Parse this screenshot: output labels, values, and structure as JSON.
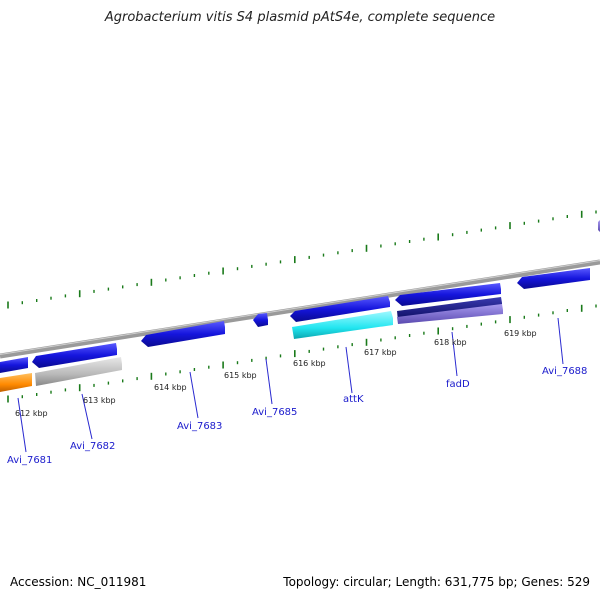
{
  "header": {
    "title": "Agrobacterium vitis S4 plasmid pAtS4e, complete sequence"
  },
  "footer": {
    "accession": "Accession: NC_011981",
    "topology": "Topology: circular; Length: 631,775 bp; Genes: 529"
  },
  "colors": {
    "backbone": "#888888",
    "forward_gene": "#1515dd",
    "cyan_gene": "#22e6f0",
    "navy_gene": "#0a0a6e",
    "purple_gene": "#7a6ad0",
    "orange_gene": "#ff8a00",
    "gray_gene": "#b8b8b8",
    "tick_mark": "#1a7a1a",
    "label_line": "#2a2ad0"
  },
  "scale_labels": [
    "612 kbp",
    "613 kbp",
    "614 kbp",
    "615 kbp",
    "616 kbp",
    "617 kbp",
    "618 kbp",
    "619 kbp"
  ],
  "gene_labels": [
    "Avi_7681",
    "Avi_7682",
    "Avi_7683",
    "Avi_7685",
    "attK",
    "fadD",
    "Avi_7688"
  ]
}
